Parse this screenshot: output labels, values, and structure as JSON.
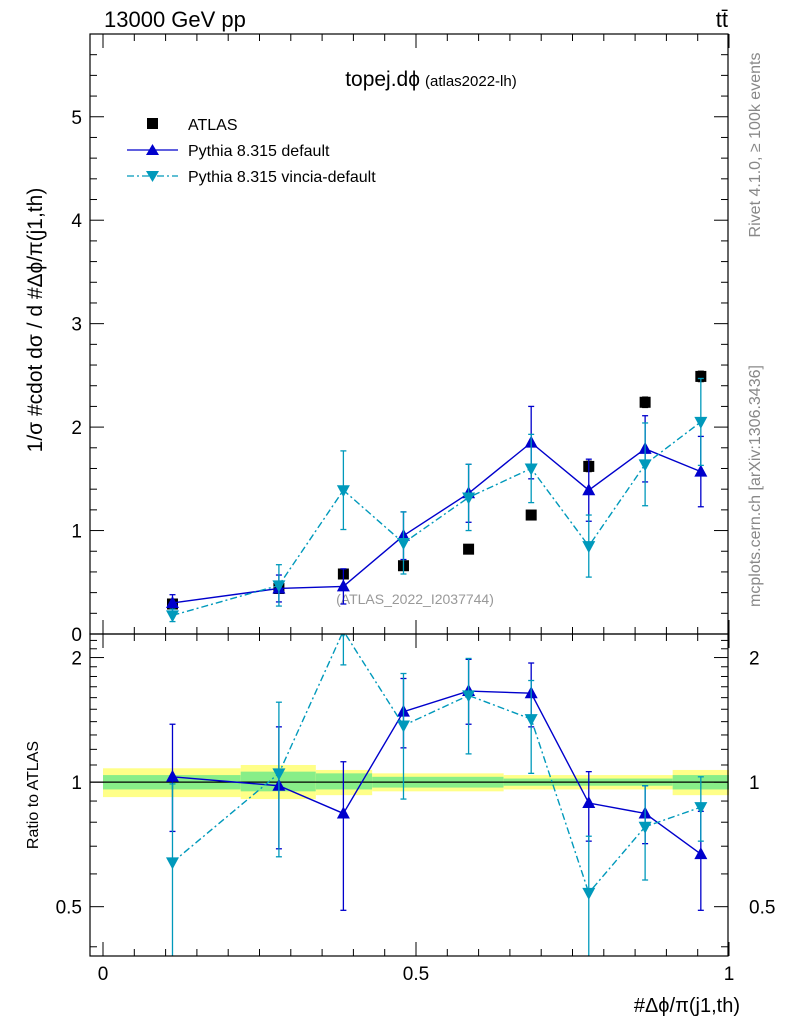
{
  "header": {
    "energy_label": "13000 GeV pp",
    "process_label": "tt̄",
    "rivet_label": "Rivet 4.1.0, ≥ 100k events",
    "mcplots_label": "mcplots.cern.ch [arXiv:1306.3436]"
  },
  "chart_data": [
    {
      "type": "scatter",
      "role": "main",
      "title": "topej.dϕ",
      "subtitle": "(atlas2022-lh)",
      "watermark": "(ATLAS_2022_I2037744)",
      "ylabel": "1/σ #cdot dσ / d #Δϕ/π(j1,th)",
      "ylim": [
        0,
        5.8
      ],
      "yticks": [
        0,
        1,
        2,
        3,
        4,
        5
      ],
      "ytick_labels": [
        "0",
        "1",
        "2",
        "3",
        "4",
        "5"
      ],
      "xlim": [
        0,
        1
      ],
      "legend_position": "top-left",
      "series": [
        {
          "name": "ATLAS",
          "color": "#000000",
          "marker": "square",
          "x": [
            0.111,
            0.281,
            0.384,
            0.48,
            0.584,
            0.684,
            0.776,
            0.866,
            0.955
          ],
          "y": [
            0.29,
            0.44,
            0.58,
            0.66,
            0.82,
            1.15,
            1.62,
            2.24,
            2.49
          ],
          "err_lo": [
            0.02,
            0.02,
            0.03,
            0.03,
            0.02,
            0.03,
            0.05,
            0.05,
            0.05
          ],
          "err_hi": [
            0.02,
            0.02,
            0.03,
            0.03,
            0.02,
            0.03,
            0.05,
            0.05,
            0.05
          ]
        },
        {
          "name": "Pythia 8.315 default",
          "color": "#0000cc",
          "marker": "triangle-up",
          "line": "solid",
          "x": [
            0.111,
            0.281,
            0.384,
            0.48,
            0.584,
            0.684,
            0.776,
            0.866,
            0.955
          ],
          "y": [
            0.3,
            0.44,
            0.46,
            0.95,
            1.36,
            1.85,
            1.39,
            1.79,
            1.57
          ],
          "err_lo": [
            0.08,
            0.13,
            0.17,
            0.23,
            0.28,
            0.35,
            0.3,
            0.32,
            0.34
          ],
          "err_hi": [
            0.08,
            0.13,
            0.17,
            0.23,
            0.28,
            0.35,
            0.3,
            0.32,
            0.34
          ]
        },
        {
          "name": "Pythia 8.315 vincia-default",
          "color": "#0099bb",
          "marker": "triangle-down",
          "line": "dashdot",
          "x": [
            0.111,
            0.281,
            0.384,
            0.48,
            0.584,
            0.684,
            0.776,
            0.866,
            0.955
          ],
          "y": [
            0.18,
            0.47,
            1.39,
            0.88,
            1.32,
            1.6,
            0.85,
            1.64,
            2.05
          ],
          "err_lo": [
            0.06,
            0.2,
            0.38,
            0.3,
            0.32,
            0.33,
            0.3,
            0.4,
            0.42
          ],
          "err_hi": [
            0.06,
            0.2,
            0.38,
            0.3,
            0.32,
            0.33,
            0.3,
            0.4,
            0.42
          ]
        }
      ]
    },
    {
      "type": "line",
      "role": "ratio",
      "ylabel": "Ratio to ATLAS",
      "xlabel": "#Δϕ/π(j1,th)",
      "xlim": [
        0,
        1
      ],
      "ylim": [
        0.38,
        2.28
      ],
      "yscale": "log",
      "yticks": [
        0.5,
        1,
        2
      ],
      "ytick_labels": [
        "0.5",
        "1",
        "2"
      ],
      "xticks": [
        0,
        0.5,
        1
      ],
      "xtick_labels": [
        "0",
        "0.5",
        "1"
      ],
      "band_colors": {
        "inner": "#88ee88",
        "outer": "#ffff88"
      },
      "bands": [
        {
          "x0": 0.0,
          "x1": 0.22,
          "inner": [
            0.96,
            1.04
          ],
          "outer": [
            0.92,
            1.08
          ]
        },
        {
          "x0": 0.22,
          "x1": 0.34,
          "inner": [
            0.95,
            1.06
          ],
          "outer": [
            0.91,
            1.1
          ]
        },
        {
          "x0": 0.34,
          "x1": 0.43,
          "inner": [
            0.96,
            1.05
          ],
          "outer": [
            0.93,
            1.07
          ]
        },
        {
          "x0": 0.43,
          "x1": 0.64,
          "inner": [
            0.97,
            1.03
          ],
          "outer": [
            0.95,
            1.05
          ]
        },
        {
          "x0": 0.64,
          "x1": 0.91,
          "inner": [
            0.98,
            1.02
          ],
          "outer": [
            0.96,
            1.04
          ]
        },
        {
          "x0": 0.91,
          "x1": 1.0,
          "inner": [
            0.96,
            1.04
          ],
          "outer": [
            0.93,
            1.07
          ]
        }
      ],
      "series": [
        {
          "name": "Pythia 8.315 default",
          "color": "#0000cc",
          "marker": "triangle-up",
          "line": "solid",
          "x": [
            0.111,
            0.281,
            0.384,
            0.48,
            0.584,
            0.684,
            0.776,
            0.866,
            0.955
          ],
          "y": [
            1.03,
            0.98,
            0.84,
            1.48,
            1.66,
            1.64,
            0.89,
            0.84,
            0.67
          ],
          "err_lo": [
            0.27,
            0.29,
            0.35,
            0.27,
            0.28,
            0.28,
            0.17,
            0.13,
            0.18
          ],
          "err_hi": [
            0.35,
            0.38,
            0.28,
            0.3,
            0.32,
            0.3,
            0.17,
            0.14,
            0.18
          ]
        },
        {
          "name": "Pythia 8.315 vincia-default",
          "color": "#0099bb",
          "marker": "triangle-down",
          "line": "dashdot",
          "x": [
            0.111,
            0.281,
            0.384,
            0.48,
            0.584,
            0.684,
            0.776,
            0.866,
            0.955
          ],
          "y": [
            0.64,
            1.05,
            2.32,
            1.37,
            1.62,
            1.42,
            0.54,
            0.78,
            0.87
          ],
          "err_lo": [
            0.28,
            0.39,
            0.4,
            0.46,
            0.45,
            0.37,
            0.19,
            0.2,
            0.15
          ],
          "err_hi": [
            0.35,
            0.51,
            0.4,
            0.46,
            0.37,
            0.34,
            0.2,
            0.2,
            0.16
          ]
        }
      ]
    }
  ]
}
